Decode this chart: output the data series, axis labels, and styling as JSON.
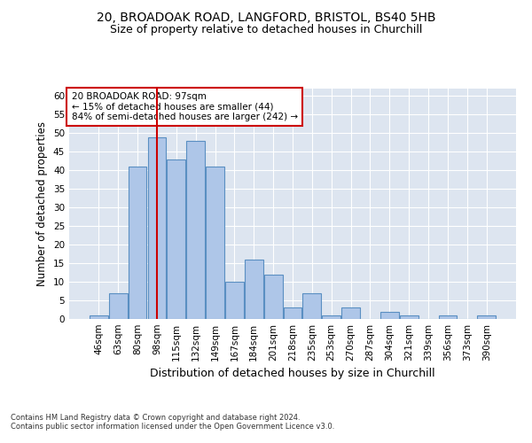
{
  "title_line1": "20, BROADOAK ROAD, LANGFORD, BRISTOL, BS40 5HB",
  "title_line2": "Size of property relative to detached houses in Churchill",
  "xlabel": "Distribution of detached houses by size in Churchill",
  "ylabel": "Number of detached properties",
  "bar_labels": [
    "46sqm",
    "63sqm",
    "80sqm",
    "98sqm",
    "115sqm",
    "132sqm",
    "149sqm",
    "167sqm",
    "184sqm",
    "201sqm",
    "218sqm",
    "235sqm",
    "253sqm",
    "270sqm",
    "287sqm",
    "304sqm",
    "321sqm",
    "339sqm",
    "356sqm",
    "373sqm",
    "390sqm"
  ],
  "bar_values": [
    1,
    7,
    41,
    49,
    43,
    48,
    41,
    10,
    16,
    12,
    3,
    7,
    1,
    3,
    0,
    2,
    1,
    0,
    1,
    0,
    1
  ],
  "bar_color": "#aec6e8",
  "bar_edge_color": "#5a8fc2",
  "annotation_box_text": "20 BROADOAK ROAD: 97sqm\n← 15% of detached houses are smaller (44)\n84% of semi-detached houses are larger (242) →",
  "annotation_box_color": "#ffffff",
  "annotation_box_edge_color": "#cc0000",
  "vline_x_index": 3,
  "vline_color": "#cc0000",
  "ylim": [
    0,
    62
  ],
  "yticks": [
    0,
    5,
    10,
    15,
    20,
    25,
    30,
    35,
    40,
    45,
    50,
    55,
    60
  ],
  "background_color": "#dde5f0",
  "footer_line1": "Contains HM Land Registry data © Crown copyright and database right 2024.",
  "footer_line2": "Contains public sector information licensed under the Open Government Licence v3.0.",
  "title_fontsize": 10,
  "subtitle_fontsize": 9,
  "tick_fontsize": 7.5,
  "ylabel_fontsize": 8.5,
  "xlabel_fontsize": 9
}
